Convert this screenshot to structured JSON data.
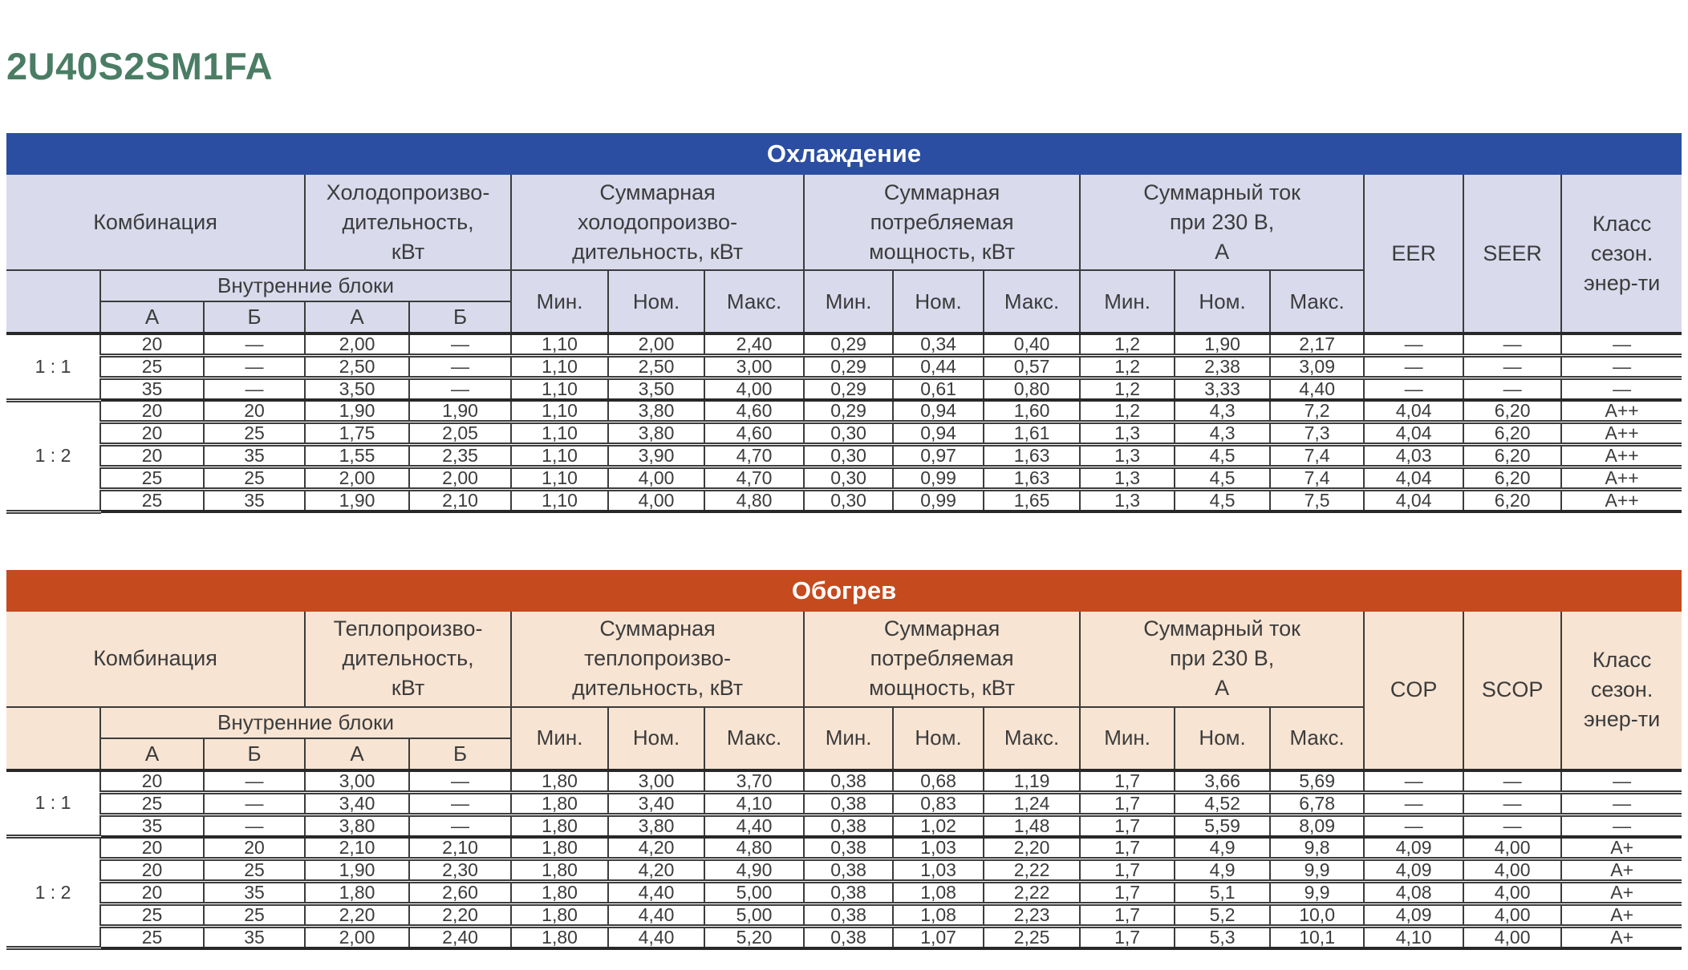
{
  "page_title": "2U40S2SM1FA",
  "title_color": "#4A7D64",
  "tables": [
    {
      "id": "cooling",
      "title": "Охлаждение",
      "accent_color": "#2B4EA2",
      "header_bg": "#D9DAEC",
      "headers": {
        "combination": "Комбинация",
        "capacity": "Холодопроизво-\nдительность,\nкВт",
        "total_capacity": "Суммарная\nхолодопроизво-\nдительность, кВт",
        "power": "Суммарная\nпотребляемая\nмощность, кВт",
        "current": "Суммарный ток\nпри 230 В,\nА",
        "efficiency": "EER",
        "seasonal_efficiency": "SEER",
        "energy_class": "Класс\nсезон.\nэнер-ти",
        "indoor_units": "Внутренние блоки",
        "unit_a": "А",
        "unit_b": "Б",
        "min": "Мин.",
        "nom": "Ном.",
        "max": "Макс."
      },
      "groups": [
        {
          "ratio": "1 : 1",
          "rows": [
            [
              "20",
              "—",
              "2,00",
              "—",
              "1,10",
              "2,00",
              "2,40",
              "0,29",
              "0,34",
              "0,40",
              "1,2",
              "1,90",
              "2,17",
              "—",
              "—",
              "—"
            ],
            [
              "25",
              "—",
              "2,50",
              "—",
              "1,10",
              "2,50",
              "3,00",
              "0,29",
              "0,44",
              "0,57",
              "1,2",
              "2,38",
              "3,09",
              "—",
              "—",
              "—"
            ],
            [
              "35",
              "—",
              "3,50",
              "—",
              "1,10",
              "3,50",
              "4,00",
              "0,29",
              "0,61",
              "0,80",
              "1,2",
              "3,33",
              "4,40",
              "—",
              "—",
              "—"
            ]
          ]
        },
        {
          "ratio": "1 : 2",
          "rows": [
            [
              "20",
              "20",
              "1,90",
              "1,90",
              "1,10",
              "3,80",
              "4,60",
              "0,29",
              "0,94",
              "1,60",
              "1,2",
              "4,3",
              "7,2",
              "4,04",
              "6,20",
              "А++"
            ],
            [
              "20",
              "25",
              "1,75",
              "2,05",
              "1,10",
              "3,80",
              "4,60",
              "0,30",
              "0,94",
              "1,61",
              "1,3",
              "4,3",
              "7,3",
              "4,04",
              "6,20",
              "А++"
            ],
            [
              "20",
              "35",
              "1,55",
              "2,35",
              "1,10",
              "3,90",
              "4,70",
              "0,30",
              "0,97",
              "1,63",
              "1,3",
              "4,5",
              "7,4",
              "4,03",
              "6,20",
              "А++"
            ],
            [
              "25",
              "25",
              "2,00",
              "2,00",
              "1,10",
              "4,00",
              "4,70",
              "0,30",
              "0,99",
              "1,63",
              "1,3",
              "4,5",
              "7,4",
              "4,04",
              "6,20",
              "А++"
            ],
            [
              "25",
              "35",
              "1,90",
              "2,10",
              "1,10",
              "4,00",
              "4,80",
              "0,30",
              "0,99",
              "1,65",
              "1,3",
              "4,5",
              "7,5",
              "4,04",
              "6,20",
              "А++"
            ]
          ]
        }
      ]
    },
    {
      "id": "heating",
      "title": "Обогрев",
      "accent_color": "#C54A1E",
      "header_bg": "#F7E4D3",
      "headers": {
        "combination": "Комбинация",
        "capacity": "Теплопроизво-\nдительность,\nкВт",
        "total_capacity": "Суммарная\nтеплопроизво-\nдительность, кВт",
        "power": "Суммарная\nпотребляемая\nмощность, кВт",
        "current": "Суммарный ток\nпри 230 В,\nА",
        "efficiency": "COP",
        "seasonal_efficiency": "SCOP",
        "energy_class": "Класс\nсезон.\nэнер-ти",
        "indoor_units": "Внутренние блоки",
        "unit_a": "А",
        "unit_b": "Б",
        "min": "Мин.",
        "nom": "Ном.",
        "max": "Макс."
      },
      "groups": [
        {
          "ratio": "1 : 1",
          "rows": [
            [
              "20",
              "—",
              "3,00",
              "—",
              "1,80",
              "3,00",
              "3,70",
              "0,38",
              "0,68",
              "1,19",
              "1,7",
              "3,66",
              "5,69",
              "—",
              "—",
              "—"
            ],
            [
              "25",
              "—",
              "3,40",
              "—",
              "1,80",
              "3,40",
              "4,10",
              "0,38",
              "0,83",
              "1,24",
              "1,7",
              "4,52",
              "6,78",
              "—",
              "—",
              "—"
            ],
            [
              "35",
              "—",
              "3,80",
              "—",
              "1,80",
              "3,80",
              "4,40",
              "0,38",
              "1,02",
              "1,48",
              "1,7",
              "5,59",
              "8,09",
              "—",
              "—",
              "—"
            ]
          ]
        },
        {
          "ratio": "1 : 2",
          "rows": [
            [
              "20",
              "20",
              "2,10",
              "2,10",
              "1,80",
              "4,20",
              "4,80",
              "0,38",
              "1,03",
              "2,20",
              "1,7",
              "4,9",
              "9,8",
              "4,09",
              "4,00",
              "А+"
            ],
            [
              "20",
              "25",
              "1,90",
              "2,30",
              "1,80",
              "4,20",
              "4,90",
              "0,38",
              "1,03",
              "2,22",
              "1,7",
              "4,9",
              "9,9",
              "4,09",
              "4,00",
              "А+"
            ],
            [
              "20",
              "35",
              "1,80",
              "2,60",
              "1,80",
              "4,40",
              "5,00",
              "0,38",
              "1,08",
              "2,22",
              "1,7",
              "5,1",
              "9,9",
              "4,08",
              "4,00",
              "А+"
            ],
            [
              "25",
              "25",
              "2,20",
              "2,20",
              "1,80",
              "4,40",
              "5,00",
              "0,38",
              "1,08",
              "2,23",
              "1,7",
              "5,2",
              "10,0",
              "4,09",
              "4,00",
              "А+"
            ],
            [
              "25",
              "35",
              "2,00",
              "2,40",
              "1,80",
              "4,40",
              "5,20",
              "0,38",
              "1,07",
              "2,25",
              "1,7",
              "5,3",
              "10,1",
              "4,10",
              "4,00",
              "А+"
            ]
          ]
        }
      ]
    }
  ]
}
